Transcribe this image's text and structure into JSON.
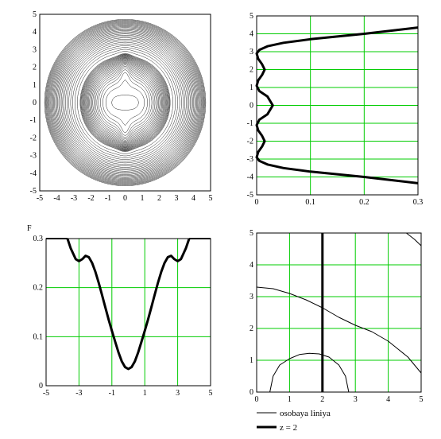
{
  "chart_data": [
    {
      "type": "contour",
      "xlim": [
        -5,
        5
      ],
      "ylim": [
        -5,
        5
      ],
      "x_ticks": [
        "-5",
        "-4",
        "-3",
        "-2",
        "-1",
        "0",
        "1",
        "2",
        "3",
        "4",
        "5"
      ],
      "y_ticks": [
        "5",
        "4",
        "3",
        "2",
        "1",
        "0",
        "-1",
        "-2",
        "-3",
        "-4",
        "-5"
      ],
      "grid": false,
      "color": "#000000"
    },
    {
      "type": "line",
      "xlim": [
        0,
        0.3
      ],
      "ylim": [
        -5,
        5
      ],
      "x_ticks": [
        "0",
        "0.1",
        "0.2",
        "0.3"
      ],
      "y_ticks": [
        "5",
        "4",
        "3",
        "2",
        "1",
        "0",
        "-1",
        "-2",
        "-3",
        "-4",
        "-5"
      ],
      "grid": true,
      "series": [
        {
          "x": [
            0.3,
            0.2,
            0.1,
            0.05,
            0.02,
            0.005,
            0.0,
            0.003,
            0.01,
            0.015,
            0.01,
            0.003,
            0.0,
            0.005,
            0.02,
            0.03,
            0.02,
            0.005,
            0.0,
            0.003,
            0.01,
            0.015,
            0.01,
            0.003,
            0.0,
            0.005,
            0.02,
            0.05,
            0.1,
            0.2,
            0.3
          ],
          "y": [
            4.35,
            4.0,
            3.7,
            3.5,
            3.3,
            3.1,
            2.9,
            2.6,
            2.3,
            2.0,
            1.7,
            1.4,
            1.1,
            0.8,
            0.5,
            0.0,
            -0.5,
            -0.8,
            -1.1,
            -1.4,
            -1.7,
            -2.0,
            -2.3,
            -2.6,
            -2.9,
            -3.1,
            -3.3,
            -3.5,
            -3.7,
            -4.0,
            -4.35
          ]
        }
      ]
    },
    {
      "type": "line",
      "ylabel": "F",
      "xlim": [
        -5,
        5
      ],
      "ylim": [
        0,
        0.3
      ],
      "x_ticks": [
        "-5",
        "-3",
        "-1",
        "1",
        "3",
        "5"
      ],
      "y_ticks": [
        "0.3",
        "0.2",
        "0.1",
        "0"
      ],
      "grid": true,
      "series": [
        {
          "x": [
            -3.7,
            -3.5,
            -3.2,
            -3.0,
            -2.8,
            -2.6,
            -2.4,
            -2.2,
            -2.0,
            -1.8,
            -1.6,
            -1.4,
            -1.2,
            -1.0,
            -0.8,
            -0.6,
            -0.4,
            -0.2,
            0.0,
            0.2,
            0.4,
            0.6,
            0.8,
            1.0,
            1.2,
            1.4,
            1.6,
            1.8,
            2.0,
            2.2,
            2.4,
            2.6,
            2.8,
            3.0,
            3.2,
            3.5,
            3.7
          ],
          "y": [
            0.3,
            0.28,
            0.258,
            0.254,
            0.258,
            0.265,
            0.262,
            0.25,
            0.232,
            0.21,
            0.185,
            0.16,
            0.135,
            0.112,
            0.09,
            0.068,
            0.05,
            0.038,
            0.034,
            0.038,
            0.05,
            0.068,
            0.09,
            0.112,
            0.135,
            0.16,
            0.185,
            0.21,
            0.232,
            0.25,
            0.262,
            0.265,
            0.258,
            0.254,
            0.258,
            0.28,
            0.3
          ]
        }
      ]
    },
    {
      "type": "line",
      "xlim": [
        0,
        5
      ],
      "ylim": [
        0,
        5
      ],
      "x_ticks": [
        "0",
        "1",
        "2",
        "3",
        "4",
        "5"
      ],
      "y_ticks": [
        "5",
        "4",
        "3",
        "2",
        "1",
        "0"
      ],
      "grid": true,
      "legend": "bottom",
      "series": [
        {
          "name": "osobaya liniya",
          "segments": [
            {
              "x": [
                0.0,
                0.5,
                1.0,
                1.5,
                2.0,
                2.5,
                3.0,
                3.5,
                4.0,
                4.3,
                4.6,
                4.8,
                5.0
              ],
              "y": [
                3.3,
                3.25,
                3.1,
                2.9,
                2.65,
                2.35,
                2.1,
                1.9,
                1.6,
                1.35,
                1.1,
                0.85,
                0.6
              ]
            },
            {
              "x": [
                0.4,
                0.5,
                0.7,
                1.0,
                1.3,
                1.6,
                1.9,
                2.2,
                2.5,
                2.7,
                2.8
              ],
              "y": [
                0.0,
                0.5,
                0.85,
                1.05,
                1.18,
                1.22,
                1.2,
                1.1,
                0.85,
                0.5,
                0.0
              ]
            },
            {
              "x": [
                4.55,
                4.8,
                5.0
              ],
              "y": [
                5.0,
                4.8,
                4.6
              ]
            }
          ]
        },
        {
          "name": "z = 2",
          "x": [
            2,
            2
          ],
          "y": [
            0,
            5
          ]
        }
      ]
    }
  ]
}
